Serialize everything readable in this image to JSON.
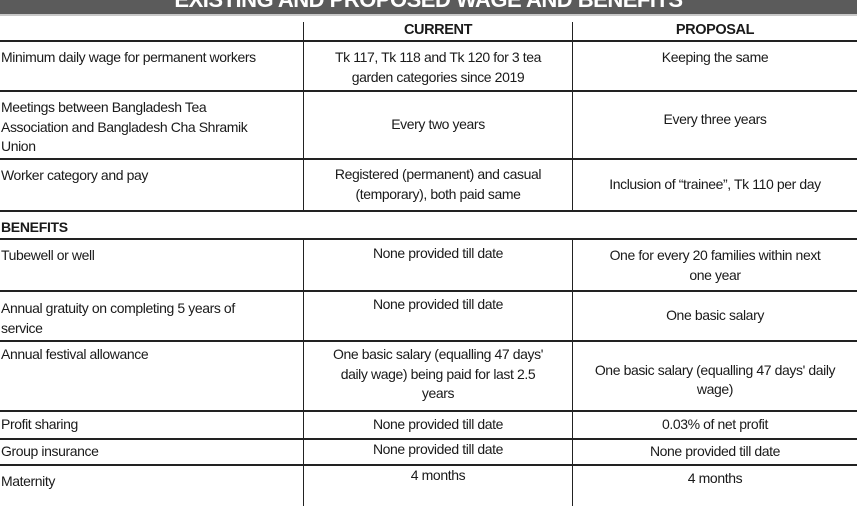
{
  "title": "EXISTING AND PROPOSED WAGE AND BENEFITS",
  "columns": [
    "",
    "CURRENT",
    "PROPOSAL"
  ],
  "wage_rows": [
    {
      "item": "Minimum daily wage for permanent workers",
      "current": "Tk 117, Tk 118 and Tk 120 for 3 tea garden categories since 2019",
      "proposal": "Keeping the same"
    },
    {
      "item": "Meetings between Bangladesh Tea Association and Bangladesh Cha Shramik Union",
      "current": "Every two years",
      "proposal": "Every three years"
    },
    {
      "item": "Worker category and pay",
      "current": "Registered (permanent) and casual (temporary), both paid same",
      "proposal": "Inclusion of “trainee”, Tk 110 per day"
    }
  ],
  "benefits_heading": "BENEFITS",
  "benefit_rows": [
    {
      "item": "Tubewell or well",
      "current": "None provided till date",
      "proposal": "One for every 20 families within next one year"
    },
    {
      "item": "Annual gratuity on completing 5 years of service",
      "current": "None provided till date",
      "proposal": "One basic salary"
    },
    {
      "item": "Annual festival allowance",
      "current": "One basic salary (equalling 47 days' daily wage) being paid for last 2.5 years",
      "proposal": "One basic salary (equalling 47 days' daily wage)"
    },
    {
      "item": "Profit sharing",
      "current": "None provided till date",
      "proposal": "0.03% of net profit"
    },
    {
      "item": "Group insurance",
      "current": "None provided till date",
      "proposal": "None provided till date"
    },
    {
      "item": "Maternity",
      "current": "4 months",
      "proposal": "4 months"
    }
  ]
}
